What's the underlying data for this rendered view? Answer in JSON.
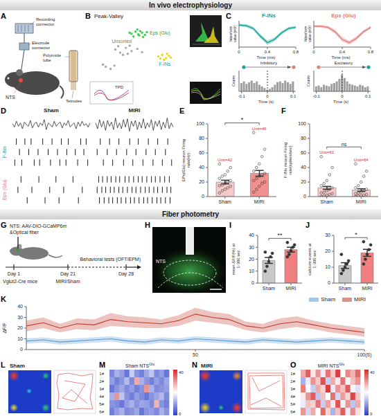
{
  "sections": [
    {
      "title": "In vivo electrophysiology"
    },
    {
      "title": "Fiber photometry"
    }
  ],
  "diagrams": [
    {
      "panel": "A",
      "labels": [
        "Recording connector",
        "Electrode connector",
        "Polyimide tube",
        "Tetrodes"
      ],
      "region": "NTS"
    },
    {
      "panel": "G",
      "injection": "NTS: AAV-DIO-GCaMP6m",
      "fiber": "&Optical fiber",
      "mice": "Vglut2-Cre mice",
      "days": [
        "Day 1",
        "Day 21",
        "Day 28"
      ],
      "events": [
        "MIRI/Sham",
        "Behavioral tests (OFT/EPM)"
      ]
    },
    {
      "panel": "H",
      "region": "NTS"
    },
    {
      "panel": "L",
      "title": "Sham"
    },
    {
      "panel": "N",
      "title": "MIRI"
    }
  ],
  "chart_data": [
    {
      "panel": "B",
      "type": "scatter",
      "title": "Peak-Valley",
      "inset_label": "TPD",
      "xlim": [
        0,
        10
      ],
      "ylim": [
        0,
        10
      ],
      "tick_labels": false,
      "series": [
        {
          "name": "Eps (Glu)",
          "color": "#3ccf4e",
          "x": [
            4.2,
            4.6,
            5.0,
            5.3,
            4.8,
            5.6,
            4.4,
            5.1,
            5.8,
            4.9,
            5.4,
            4.0
          ],
          "values": [
            8.1,
            8.5,
            7.8,
            8.3,
            8.9,
            7.9,
            7.6,
            8.6,
            8.4,
            8.0,
            7.5,
            8.3
          ]
        },
        {
          "name": "Unsorted",
          "color": "#a8a8a8",
          "x": [
            2.5,
            3.0,
            3.6,
            4.2,
            4.8,
            3.3,
            2.8,
            5.3,
            4.0,
            3.8,
            1.5,
            2.0,
            1.2,
            2.4
          ],
          "values": [
            5.2,
            4.6,
            5.5,
            4.9,
            5.3,
            4.2,
            5.8,
            4.7,
            5.9,
            4.4,
            2.0,
            1.6,
            2.4,
            2.2
          ]
        },
        {
          "name": "F-INs",
          "color": "#e6d51a",
          "x": [
            7.0,
            7.4,
            7.8,
            8.1,
            7.6,
            7.2,
            8.3,
            7.9
          ],
          "values": [
            3.9,
            4.2,
            3.6,
            4.0,
            3.3,
            3.5,
            3.7,
            4.4
          ]
        }
      ]
    },
    {
      "panel": "C",
      "type": "line",
      "x": [
        0,
        0.1,
        0.2,
        0.3,
        0.4,
        0.5,
        0.6,
        0.7,
        0.8
      ],
      "xlim": [
        0,
        0.8
      ],
      "xticks": [
        0,
        0.4,
        0.8
      ],
      "ylim": [
        -0.8,
        0.4
      ],
      "tick_labels": "x",
      "x_label": "Time (ms)",
      "y_label": "Waveform value (mV)",
      "series": [
        {
          "name": "F-INs",
          "color": "#17a398",
          "values": [
            0.2,
            0.18,
            0.05,
            -0.3,
            -0.6,
            -0.45,
            -0.15,
            0.05,
            0.1
          ],
          "sd": [
            0.06,
            0.07,
            0.08,
            0.1,
            0.1,
            0.09,
            0.08,
            0.07,
            0.06
          ]
        },
        {
          "name": "Eps (Glu)",
          "color": "#e47c7c",
          "values": [
            0.15,
            0.15,
            0.1,
            -0.1,
            -0.45,
            -0.6,
            -0.4,
            -0.1,
            0.1
          ],
          "sd": [
            0.05,
            0.06,
            0.07,
            0.09,
            0.1,
            0.1,
            0.09,
            0.07,
            0.06
          ]
        }
      ]
    },
    {
      "panel": "C",
      "type": "bar",
      "x": [
        -0.1,
        -0.09,
        -0.08,
        -0.07,
        -0.06,
        -0.05,
        -0.04,
        -0.03,
        -0.02,
        -0.01,
        0,
        0.01,
        0.02,
        0.03,
        0.04,
        0.05,
        0.06,
        0.07,
        0.08,
        0.09,
        0.1
      ],
      "xlim": [
        -0.11,
        0.11
      ],
      "xticks": [
        -0.1,
        0,
        0.1
      ],
      "ylim": [
        0,
        25
      ],
      "tick_labels": "x",
      "x_label": "Time (s)",
      "y_label": "Counts",
      "reference_line": 0,
      "series": [
        {
          "name": "Inhibitory",
          "color": "#9e9e9e",
          "values": [
            10,
            12,
            9,
            11,
            13,
            10,
            12,
            8,
            6,
            4,
            2,
            3,
            5,
            8,
            11,
            12,
            10,
            13,
            11,
            9,
            12
          ]
        },
        {
          "name": "Excitatory",
          "color": "#9e9e9e",
          "values": [
            6,
            7,
            5,
            8,
            7,
            6,
            9,
            10,
            12,
            15,
            20,
            16,
            12,
            9,
            8,
            7,
            6,
            8,
            7,
            5,
            6
          ]
        }
      ]
    },
    {
      "panel": "D",
      "type": "raster",
      "xlim": [
        0,
        10
      ],
      "ylim": [
        -1,
        1
      ],
      "tick_labels": false,
      "groups": [
        {
          "name": "F-INs",
          "color": "#17a398"
        },
        {
          "name": "Eps (Glu)",
          "color": "#e47c7c"
        }
      ],
      "conditions": [
        {
          "name": "Sham",
          "trace": [
            0.1,
            -0.3,
            0.4,
            -0.2,
            0.2,
            -0.5,
            0.3,
            0.0,
            -0.2,
            0.5,
            -0.4,
            0.1,
            0.3,
            -0.3,
            0.2,
            -0.1,
            0.6,
            -0.6,
            0.2,
            0.0,
            -0.3,
            0.4,
            -0.2,
            0.1,
            0.3,
            -0.4,
            0.2,
            -0.1,
            0.5,
            -0.3,
            0.0,
            0.2,
            -0.5,
            0.3,
            -0.2,
            0.4,
            -0.1,
            0.1,
            -0.3,
            0.2
          ],
          "spikes": [
            [
              [
                0.5,
                1.6,
                2.4,
                3.9,
                5.1,
                6.3,
                7.2,
                8.8,
                9.5
              ],
              [
                0.9,
                2.1,
                3.3,
                4.6,
                5.8,
                7.0,
                8.1,
                9.2
              ],
              [
                0.3,
                1.2,
                2.8,
                3.5,
                4.9,
                6.1,
                6.9,
                8.4,
                9.7
              ]
            ],
            [
              [
                1.1,
                3.4,
                5.6,
                7.8
              ],
              [
                0.7,
                2.5,
                4.8,
                6.6,
                9.0
              ],
              [
                1.9,
                4.2,
                6.0,
                8.5
              ]
            ]
          ]
        },
        {
          "name": "MIRI",
          "trace": [
            0.2,
            -0.5,
            0.6,
            -0.3,
            0.4,
            -0.7,
            0.5,
            -0.2,
            0.3,
            -0.6,
            0.8,
            -0.4,
            0.2,
            -0.5,
            0.6,
            -0.3,
            0.7,
            -0.8,
            0.4,
            -0.2,
            0.5,
            -0.6,
            0.3,
            -0.4,
            0.7,
            -0.5,
            0.2,
            -0.3,
            0.6,
            -0.7,
            0.4,
            -0.2,
            0.5,
            -0.6,
            0.3,
            -0.4,
            0.8,
            -0.5,
            0.2,
            -0.3
          ],
          "spikes": [
            [
              [
                0.6,
                1.8,
                3.0,
                4.4,
                5.5,
                6.8,
                8.0,
                9.3
              ],
              [
                0.2,
                1.5,
                2.7,
                4.0,
                5.2,
                6.5,
                7.7,
                9.0
              ],
              [
                1.0,
                2.2,
                3.6,
                4.8,
                6.1,
                7.4,
                8.6,
                9.8
              ]
            ],
            [
              [
                0.4,
                0.9,
                1.5,
                2.0,
                2.6,
                3.1,
                3.8,
                4.3,
                4.9,
                5.5,
                6.0,
                6.6,
                7.2,
                7.7,
                8.3,
                8.9,
                9.5
              ],
              [
                0.2,
                0.8,
                1.3,
                1.9,
                2.4,
                3.0,
                3.5,
                4.1,
                4.7,
                5.2,
                5.8,
                6.4,
                6.9,
                7.5,
                8.0,
                8.6,
                9.2,
                9.7
              ],
              [
                0.5,
                1.1,
                1.7,
                2.2,
                2.8,
                3.3,
                3.9,
                4.5,
                5.0,
                5.6,
                6.2,
                6.7,
                7.3,
                7.9,
                8.4,
                9.0,
                9.6
              ]
            ]
          ]
        }
      ]
    },
    {
      "panel": "E",
      "type": "bar",
      "categories": [
        "Sham",
        "MIRI"
      ],
      "values": [
        20,
        32
      ],
      "errors": [
        2.5,
        4
      ],
      "colors": [
        "#f6caca",
        "#f09090"
      ],
      "marker": "open",
      "points": [
        [
          5,
          8,
          10,
          12,
          14,
          15,
          16,
          18,
          20,
          22,
          25,
          28,
          30,
          35,
          40,
          45
        ],
        [
          6,
          10,
          14,
          18,
          20,
          22,
          25,
          28,
          30,
          32,
          35,
          40,
          45,
          55,
          65,
          88
        ]
      ],
      "annotations": [
        "Unit=42",
        "Unit=46"
      ],
      "significance": "*",
      "y_label": "EPs(Glu) neuron Firing rate(Hz)",
      "ylim": [
        0,
        100
      ],
      "yticks": [
        0,
        20,
        40,
        60,
        80,
        100
      ]
    },
    {
      "panel": "F",
      "type": "bar",
      "categories": [
        "Sham",
        "MIRI"
      ],
      "values": [
        12,
        9
      ],
      "errors": [
        2,
        1.8
      ],
      "colors": [
        "#f6caca",
        "#f6caca"
      ],
      "marker": "open",
      "points": [
        [
          0,
          1,
          2,
          3,
          4,
          5,
          6,
          8,
          10,
          12,
          15,
          18,
          22,
          30,
          40,
          55
        ],
        [
          0,
          1,
          1,
          2,
          3,
          4,
          5,
          6,
          8,
          10,
          12,
          15,
          20,
          28,
          35,
          45
        ]
      ],
      "annotations": [
        "Unit=61",
        "Unit=64"
      ],
      "significance": "ns",
      "y_label": "F-INs neuron Firing rate(spikes/sec)",
      "ylim": [
        0,
        100
      ],
      "yticks": [
        0,
        20,
        40,
        60,
        80,
        100
      ]
    },
    {
      "panel": "I",
      "type": "bar",
      "categories": [
        "Sham",
        "MIRI"
      ],
      "values": [
        19,
        28
      ],
      "errors": [
        2.5,
        2
      ],
      "colors": [
        "#c8c8c8",
        "#f08080"
      ],
      "marker": "filled",
      "points": [
        [
          10,
          14,
          18,
          22,
          25,
          26
        ],
        [
          22,
          24,
          27,
          30,
          32,
          34
        ]
      ],
      "significance": "**",
      "y_label": "mean ΔF/F(%) at 1-300 sec",
      "ylim": [
        0,
        40
      ],
      "yticks": [
        0,
        10,
        20,
        30,
        40
      ]
    },
    {
      "panel": "J",
      "type": "bar",
      "categories": [
        "Sham",
        "MIRI"
      ],
      "values": [
        11,
        19
      ],
      "errors": [
        1.8,
        2.2
      ],
      "colors": [
        "#c8c8c8",
        "#f08080"
      ],
      "marker": "filled",
      "points": [
        [
          6,
          8,
          10,
          12,
          14,
          18
        ],
        [
          12,
          15,
          18,
          21,
          24,
          26
        ]
      ],
      "significance": "*",
      "y_label": "calcium events at 1-300 sec",
      "ylim": [
        0,
        30
      ],
      "yticks": [
        0,
        10,
        20,
        30
      ]
    },
    {
      "panel": "K",
      "type": "line",
      "x": [
        0,
        5,
        10,
        15,
        20,
        25,
        30,
        35,
        40,
        45,
        50,
        55,
        60,
        65,
        70,
        75,
        80,
        85,
        90,
        95,
        100
      ],
      "xlim": [
        0,
        100
      ],
      "xticks": [
        50,
        {
          "value": 100,
          "label": "100(S)"
        }
      ],
      "ylim": [
        0,
        40
      ],
      "yticks": [
        0,
        10,
        20,
        30,
        40
      ],
      "y_label": "ΔF/F",
      "legend": "upper right",
      "series": [
        {
          "name": "Sham",
          "color": "#5b9bd5",
          "values": [
            8,
            9,
            7,
            8,
            9,
            10,
            8,
            7,
            9,
            8,
            10,
            9,
            8,
            7,
            9,
            8,
            7,
            8,
            9,
            8,
            7
          ],
          "sem": [
            2.5,
            2.5,
            2.5,
            2.5,
            2.5,
            2.5,
            2.5,
            2.5,
            2.5,
            2.5,
            2.5,
            2.5,
            2.5,
            2.5,
            2.5,
            2.5,
            2.5,
            2.5,
            2.5,
            2.5,
            2.5
          ]
        },
        {
          "name": "MIRI",
          "color": "#c0392b",
          "values": [
            22,
            25,
            20,
            24,
            23,
            28,
            26,
            25,
            24,
            27,
            33,
            30,
            28,
            22,
            20,
            24,
            26,
            23,
            20,
            18,
            16
          ],
          "sem": [
            5,
            5,
            4,
            5,
            5,
            6,
            5,
            5,
            4,
            5,
            6,
            5,
            5,
            4,
            4,
            5,
            5,
            4,
            4,
            4,
            4
          ]
        }
      ]
    },
    {
      "panel": "M",
      "type": "heatmap",
      "title": "Sham NTS",
      "title_sup": "Glu",
      "rows": [
        "1#",
        "2#",
        "3#",
        "4#",
        "5#",
        "6#"
      ],
      "cells": [
        [
          8,
          12,
          10,
          6,
          15,
          9,
          7,
          11,
          14,
          8,
          10,
          6
        ],
        [
          10,
          7,
          9,
          13,
          8,
          28,
          12,
          9,
          7,
          10,
          8,
          11
        ],
        [
          6,
          9,
          11,
          8,
          10,
          7,
          9,
          30,
          12,
          8,
          9,
          10
        ],
        [
          12,
          30,
          14,
          9,
          7,
          10,
          8,
          6,
          9,
          11,
          13,
          8
        ],
        [
          9,
          8,
          6,
          10,
          12,
          9,
          11,
          10,
          8,
          27,
          9,
          7
        ],
        [
          7,
          10,
          12,
          8,
          9,
          11,
          6,
          9,
          10,
          8,
          12,
          9
        ]
      ],
      "colorbar": {
        "range": [
          0,
          40
        ],
        "ticks": [
          0,
          40
        ]
      }
    },
    {
      "panel": "O",
      "type": "heatmap",
      "title": "MIRI NTS",
      "title_sup": "Glu",
      "rows": [
        "1#",
        "2#",
        "3#",
        "4#",
        "5#",
        "6#"
      ],
      "cells": [
        [
          28,
          35,
          22,
          30,
          18,
          33,
          25,
          38,
          20,
          31,
          27,
          34
        ],
        [
          12,
          18,
          30,
          25,
          36,
          15,
          28,
          22,
          33,
          19,
          26,
          30
        ],
        [
          32,
          20,
          15,
          28,
          24,
          38,
          18,
          30,
          26,
          35,
          21,
          17
        ],
        [
          22,
          30,
          35,
          14,
          26,
          20,
          33,
          16,
          29,
          24,
          37,
          25
        ],
        [
          18,
          26,
          24,
          33,
          15,
          29,
          22,
          36,
          19,
          30,
          14,
          28
        ],
        [
          30,
          16,
          28,
          20,
          34,
          24,
          12,
          26,
          35,
          18,
          31,
          23
        ]
      ],
      "colorbar": {
        "range": [
          0,
          40
        ],
        "ticks": [
          0,
          40
        ]
      }
    }
  ]
}
